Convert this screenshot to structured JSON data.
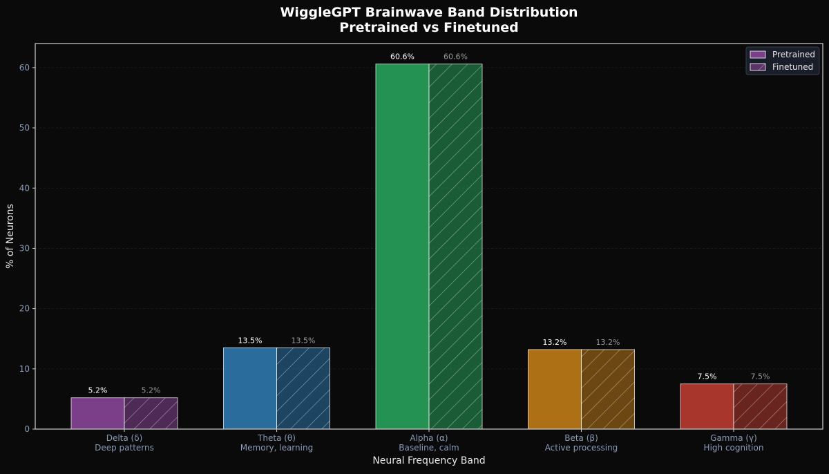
{
  "chart_data": {
    "type": "bar",
    "title": "WiggleGPT Brainwave Band Distribution",
    "subtitle": "Pretrained vs Finetuned",
    "xlabel": "Neural Frequency Band",
    "ylabel": "% of Neurons",
    "ylim": [
      0,
      64
    ],
    "yticks": [
      0,
      10,
      20,
      30,
      40,
      50,
      60
    ],
    "grid": true,
    "legend_position": "top-right",
    "categories": [
      {
        "name": "Delta (δ)",
        "description": "Deep patterns",
        "color": "#7b3f8a"
      },
      {
        "name": "Theta (θ)",
        "description": "Memory, learning",
        "color": "#2a6d9c"
      },
      {
        "name": "Alpha (α)",
        "description": "Baseline, calm",
        "color": "#249253"
      },
      {
        "name": "Beta (β)",
        "description": "Active processing",
        "color": "#ae7015"
      },
      {
        "name": "Gamma (γ)",
        "description": "High cognition",
        "color": "#a9362d"
      }
    ],
    "series": [
      {
        "name": "Pretrained",
        "style": "solid",
        "values": [
          5.2,
          13.5,
          60.6,
          13.2,
          7.5
        ],
        "labels": [
          "5.2%",
          "13.5%",
          "60.6%",
          "13.2%",
          "7.5%"
        ]
      },
      {
        "name": "Finetuned",
        "style": "hatched",
        "values": [
          5.2,
          13.5,
          60.6,
          13.2,
          7.5
        ],
        "labels": [
          "5.2%",
          "13.5%",
          "60.6%",
          "13.2%",
          "7.5%"
        ]
      }
    ]
  }
}
